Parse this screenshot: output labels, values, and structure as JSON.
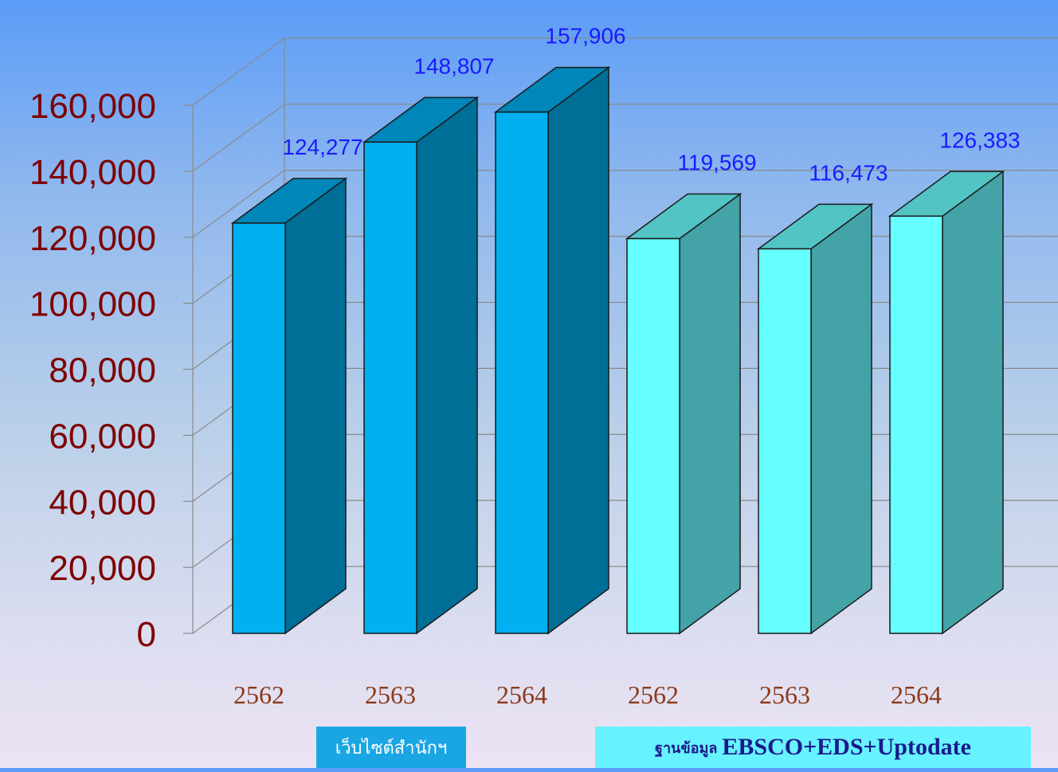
{
  "chart_data": {
    "type": "bar",
    "three_d": true,
    "categories": [
      "2562",
      "2563",
      "2564",
      "2562",
      "2563",
      "2564"
    ],
    "values": [
      124277,
      148807,
      157906,
      119569,
      116473,
      126383
    ],
    "data_labels": [
      "124,277",
      "148,807",
      "157,906",
      "119,569",
      "116,473",
      "126,383"
    ],
    "groups": [
      {
        "name": "เว็บไซต์สำนักฯ",
        "categories": [
          "2562",
          "2563",
          "2564"
        ],
        "values": [
          124277,
          148807,
          157906
        ]
      },
      {
        "name": "ฐานข้อมูล EBSCO+EDS+Uptodate",
        "categories": [
          "2562",
          "2563",
          "2564"
        ],
        "values": [
          119569,
          116473,
          126383
        ]
      }
    ],
    "y_ticks": [
      "0",
      "20,000",
      "40,000",
      "60,000",
      "80,000",
      "100,000",
      "120,000",
      "140,000",
      "160,000"
    ],
    "ylim": [
      0,
      160000
    ],
    "grid": true,
    "title": "",
    "xlabel": "",
    "ylabel": ""
  },
  "legend": {
    "group1_label": "เว็บไซต์สำนักฯ",
    "group2_prefix": "ฐานข้อมูล",
    "group2_suffix": "EBSCO+EDS+Uptodate"
  },
  "colors": {
    "group1_front": "#00b0f0",
    "group1_side": "#006f97",
    "group1_top": "#0086b8",
    "group2_front": "#66ffff",
    "group2_side": "#44a3a6",
    "group2_top": "#52c4c4",
    "tick_text": "#7f0000",
    "category_text": "#8b3a1a",
    "data_label_text": "#1a1aff"
  }
}
